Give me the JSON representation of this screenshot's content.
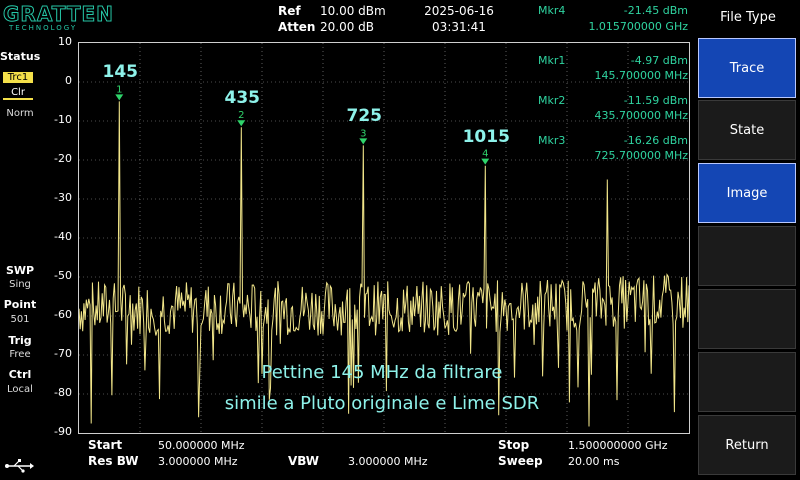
{
  "header": {
    "logo_main": "GRATTEN",
    "logo_sub": "TECHNOLOGY",
    "ref_label": "Ref",
    "ref_value": "10.00 dBm",
    "atten_label": "Atten",
    "atten_value": "20.00 dB",
    "date": "2025-06-16",
    "time": "03:31:41",
    "mkr4_label": "Mkr4",
    "mkr4_amp": "-21.45 dBm",
    "mkr4_freq": "1.015700000 GHz"
  },
  "status_panel": {
    "title": "Status",
    "trace": "Trc1",
    "clear": "Clr",
    "mode": "Norm",
    "swp_label": "SWP",
    "swp_value": "Sing",
    "point_label": "Point",
    "point_value": "501",
    "trig_label": "Trig",
    "trig_value": "Free",
    "ctrl_label": "Ctrl",
    "ctrl_value": "Local"
  },
  "y_axis_ticks": [
    "10",
    "0",
    "-10",
    "-20",
    "-30",
    "-40",
    "-50",
    "-60",
    "-70",
    "-80",
    "-90"
  ],
  "markers": [
    {
      "id": "1",
      "label": "Mkr1",
      "amp": "-4.97 dBm",
      "freq": "145.700000 MHz",
      "freq_mhz": 145.7,
      "amp_dbm": -4.97,
      "peak_text": "145"
    },
    {
      "id": "2",
      "label": "Mkr2",
      "amp": "-11.59 dBm",
      "freq": "435.700000 MHz",
      "freq_mhz": 435.7,
      "amp_dbm": -11.59,
      "peak_text": "435"
    },
    {
      "id": "3",
      "label": "Mkr3",
      "amp": "-16.26 dBm",
      "freq": "725.700000 MHz",
      "freq_mhz": 725.7,
      "amp_dbm": -16.26,
      "peak_text": "725"
    },
    {
      "id": "4",
      "label": "Mkr4",
      "amp": "-21.45 dBm",
      "freq": "1.015700000 GHz",
      "freq_mhz": 1015.7,
      "amp_dbm": -21.45,
      "peak_text": "1015"
    }
  ],
  "annotation": {
    "line1": "Pettine 145 MHz da filtrare",
    "line2": "simile a Pluto originale e Lime SDR"
  },
  "footer": {
    "start_label": "Start",
    "start_value": "50.000000 MHz",
    "stop_label": "Stop",
    "stop_value": "1.500000000 GHz",
    "rbw_label": "Res BW",
    "rbw_value": "3.000000 MHz",
    "vbw_label": "VBW",
    "vbw_value": "3.000000 MHz",
    "sweep_label": "Sweep",
    "sweep_value": "20.00 ms"
  },
  "softkeys": {
    "title": "File Type",
    "buttons": [
      {
        "label": "Trace",
        "active": true
      },
      {
        "label": "State",
        "active": false
      },
      {
        "label": "Image",
        "active": true
      },
      {
        "label": "",
        "active": false
      },
      {
        "label": "",
        "active": false
      },
      {
        "label": "",
        "active": false
      },
      {
        "label": "Return",
        "active": false
      }
    ]
  },
  "chart_data": {
    "type": "line",
    "x_range_mhz": [
      50,
      1500
    ],
    "y_range_dbm": [
      -90,
      10
    ],
    "noise_floor_dbm": -58,
    "peaks": [
      {
        "x_mhz": 145.7,
        "y_dbm": -4.97
      },
      {
        "x_mhz": 435.7,
        "y_dbm": -11.59
      },
      {
        "x_mhz": 725.7,
        "y_dbm": -16.26
      },
      {
        "x_mhz": 1015.7,
        "y_dbm": -21.45
      },
      {
        "x_mhz": 1305.7,
        "y_dbm": -25
      }
    ],
    "colors": {
      "trace": "#f2e68a",
      "marker": "#2fd46b",
      "grid": "#9a9a9a"
    }
  }
}
